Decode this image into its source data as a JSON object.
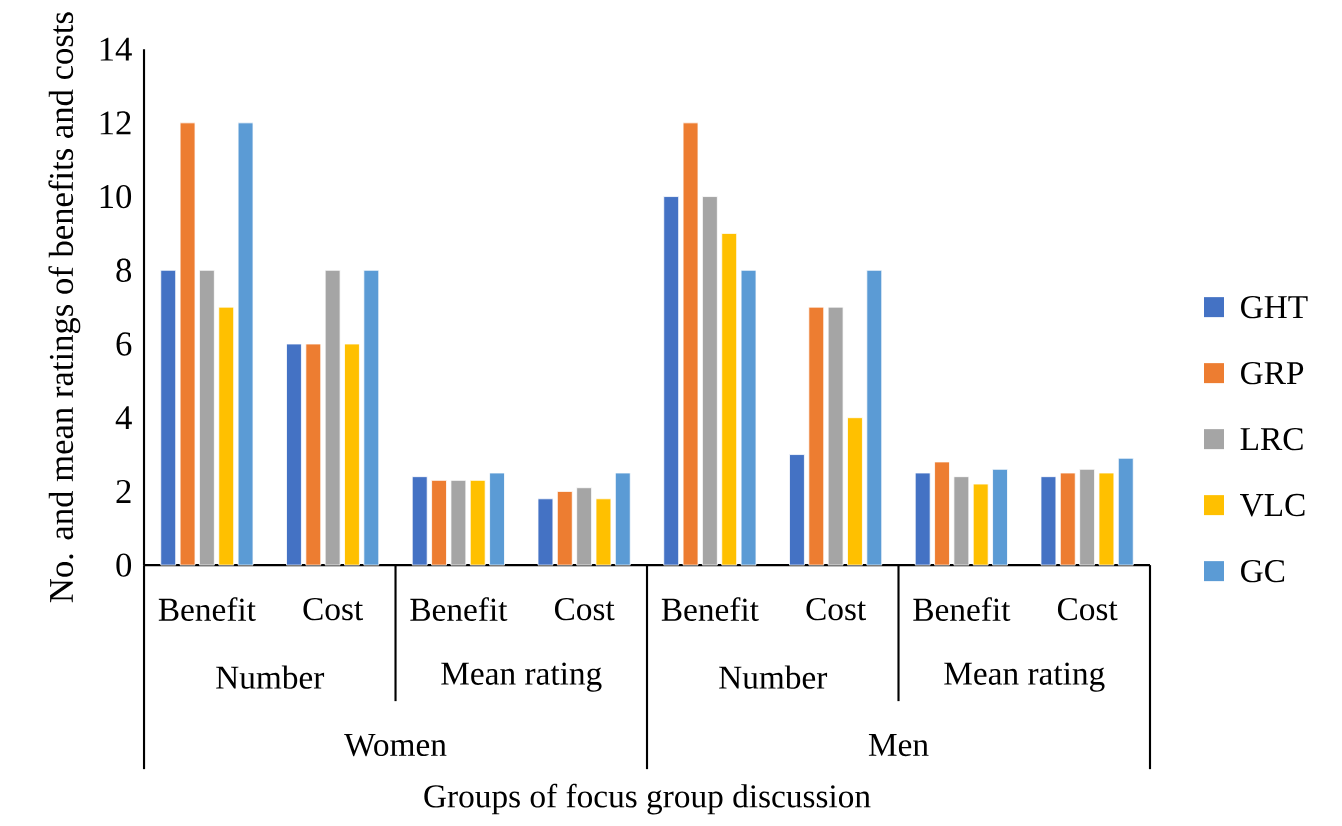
{
  "chart_data": {
    "type": "bar",
    "xlabel": "Groups of focus group discussion",
    "ylabel": "No. and mean ratings of benefits and costs",
    "categories": [
      "Benefit",
      "Cost",
      "Benefit",
      "Cost",
      "Benefit",
      "Cost",
      "Benefit",
      "Cost"
    ],
    "annotations": [
      "Number",
      "Mean rating",
      "Number",
      "Mean rating",
      "Women",
      "Men"
    ],
    "series": [
      {
        "name": "GHT",
        "color": "#4472c4",
        "values": [
          8,
          6,
          2.4,
          1.8,
          10,
          3,
          2.5,
          2.4
        ]
      },
      {
        "name": "GRP",
        "color": "#ed7d31",
        "values": [
          12,
          6,
          2.3,
          2.0,
          12,
          7,
          2.8,
          2.5
        ]
      },
      {
        "name": "LRC",
        "color": "#a5a5a5",
        "values": [
          8,
          8,
          2.3,
          2.1,
          10,
          7,
          2.4,
          2.6
        ]
      },
      {
        "name": "VLC",
        "color": "#ffc000",
        "values": [
          7,
          6,
          2.3,
          1.8,
          9,
          4,
          2.2,
          2.5
        ]
      },
      {
        "name": "GC",
        "color": "#5b9bd5",
        "values": [
          12,
          8,
          2.5,
          2.5,
          8,
          8,
          2.6,
          2.9
        ]
      }
    ],
    "ylim": [
      0,
      14
    ],
    "yticks": [
      0,
      2,
      4,
      6,
      8,
      10,
      12,
      14
    ],
    "grid": false,
    "legend": "right"
  }
}
